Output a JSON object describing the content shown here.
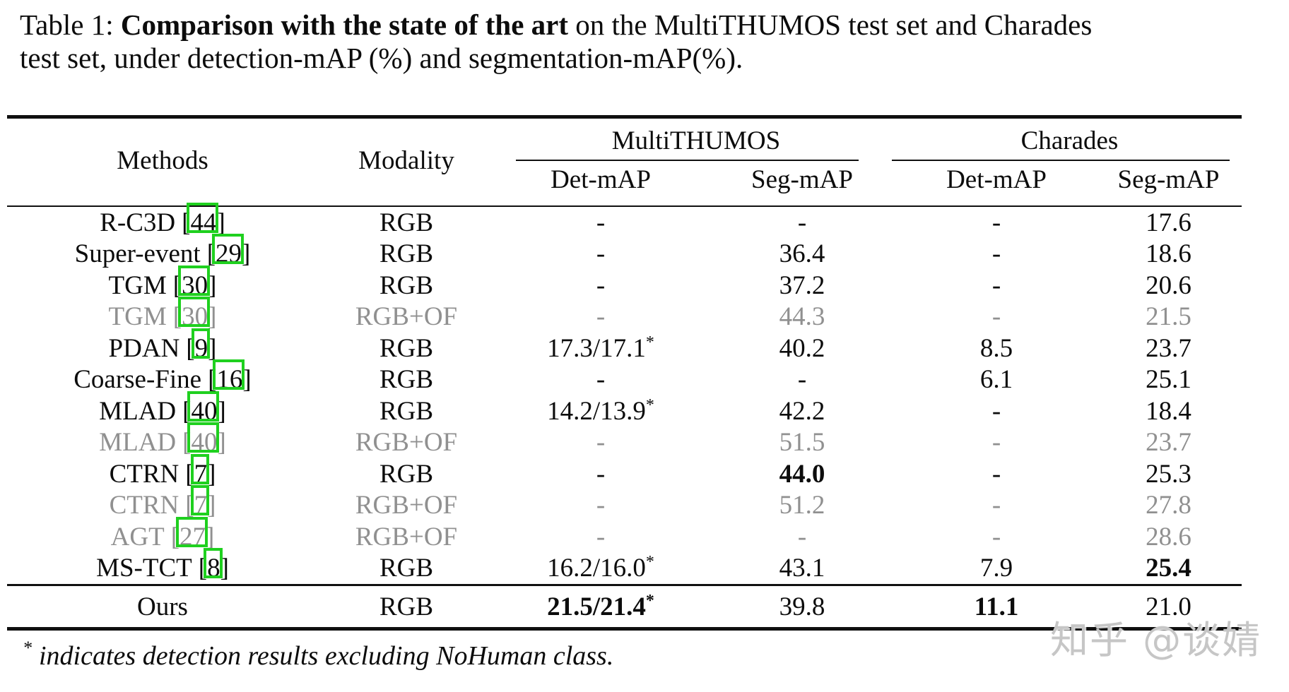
{
  "caption": {
    "line1_prefix": "Table 1: ",
    "line1_bold": "Comparison with the state of the art",
    "line1_rest": " on the MultiTHUMOS test set and Charades",
    "line2": "test set, under detection-mAP (%) and segmentation-mAP(%)."
  },
  "table": {
    "headers": {
      "methods": "Methods",
      "modality": "Modality",
      "group_multithumos": "MultiTHUMOS",
      "group_charades": "Charades",
      "mt_det": "Det-mAP",
      "mt_seg": "Seg-mAP",
      "ch_det": "Det-mAP",
      "ch_seg": "Seg-mAP"
    },
    "brackets": {
      "open": "[",
      "close": "]"
    },
    "rows": [
      {
        "method": "R-C3D",
        "cite": "44",
        "modality": "RGB",
        "mt_det": "-",
        "mt_seg": "-",
        "ch_det": "-",
        "ch_seg": "17.6",
        "muted": false
      },
      {
        "method": "Super-event",
        "cite": "29",
        "modality": "RGB",
        "mt_det": "-",
        "mt_seg": "36.4",
        "ch_det": "-",
        "ch_seg": "18.6",
        "muted": false
      },
      {
        "method": "TGM",
        "cite": "30",
        "modality": "RGB",
        "mt_det": "-",
        "mt_seg": "37.2",
        "ch_det": "-",
        "ch_seg": "20.6",
        "muted": false
      },
      {
        "method": "TGM",
        "cite": "30",
        "modality": "RGB+OF",
        "mt_det": "-",
        "mt_seg": "44.3",
        "ch_det": "-",
        "ch_seg": "21.5",
        "muted": true
      },
      {
        "method": "PDAN",
        "cite": "9",
        "modality": "RGB",
        "mt_det": "17.3/17.1",
        "mt_det_sup": "*",
        "mt_seg": "40.2",
        "ch_det": "8.5",
        "ch_seg": "23.7",
        "muted": false
      },
      {
        "method": "Coarse-Fine",
        "cite": "16",
        "modality": "RGB",
        "mt_det": "-",
        "mt_seg": "-",
        "ch_det": "6.1",
        "ch_seg": "25.1",
        "muted": false
      },
      {
        "method": "MLAD",
        "cite": "40",
        "modality": "RGB",
        "mt_det": "14.2/13.9",
        "mt_det_sup": "*",
        "mt_seg": "42.2",
        "ch_det": "-",
        "ch_seg": "18.4",
        "muted": false
      },
      {
        "method": "MLAD",
        "cite": "40",
        "modality": "RGB+OF",
        "mt_det": "-",
        "mt_seg": "51.5",
        "ch_det": "-",
        "ch_seg": "23.7",
        "muted": true
      },
      {
        "method": "CTRN",
        "cite": "7",
        "modality": "RGB",
        "mt_det": "-",
        "mt_seg": "44.0",
        "ch_det": "-",
        "ch_seg": "25.3",
        "muted": false
      },
      {
        "method": "CTRN",
        "cite": "7",
        "modality": "RGB+OF",
        "mt_det": "-",
        "mt_seg": "51.2",
        "ch_det": "-",
        "ch_seg": "27.8",
        "muted": true
      },
      {
        "method": "AGT",
        "cite": "27",
        "modality": "RGB+OF",
        "mt_det": "-",
        "mt_seg": "-",
        "ch_det": "-",
        "ch_seg": "28.6",
        "muted": true
      },
      {
        "method": "MS-TCT",
        "cite": "8",
        "modality": "RGB",
        "mt_det": "16.2/16.0",
        "mt_det_sup": "*",
        "mt_seg": "43.1",
        "ch_det": "7.9",
        "ch_seg": "25.4",
        "muted": false
      }
    ],
    "ours": {
      "method": "Ours",
      "modality": "RGB",
      "mt_det": "21.5/21.4",
      "mt_det_sup": "*",
      "mt_seg": "39.8",
      "ch_det": "11.1",
      "ch_seg": "21.0"
    }
  },
  "footnote": {
    "marker": "*",
    "text": "indicates detection results excluding NoHuman class."
  },
  "watermark": "知乎 @谈婧",
  "colors": {
    "citation-box-green": "#1fd01f",
    "muted-row-gray": "#909090",
    "watermark-gray": "#c6c6c6"
  }
}
